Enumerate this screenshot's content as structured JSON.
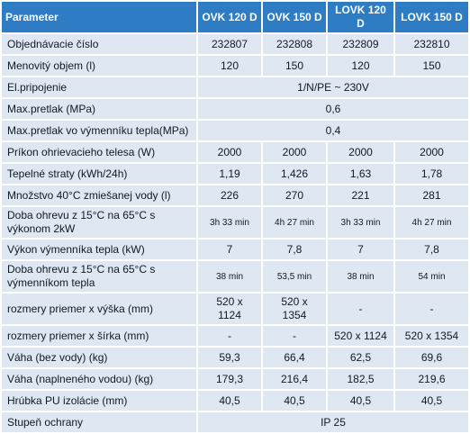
{
  "table": {
    "header": [
      "Parameter",
      "OVK 120 D",
      "OVK 150 D",
      "LOVK 120 D",
      "LOVK 150 D"
    ],
    "rows": [
      [
        "Objednávacie číslo",
        "232807",
        "232808",
        "232809",
        "232810"
      ],
      [
        "Menovitý objem (l)",
        "120",
        "150",
        "120",
        "150"
      ],
      [
        "El.pripojenie",
        "1/N/PE ~ 230V"
      ],
      [
        "Max.pretlak (MPa)",
        "0,6"
      ],
      [
        "Max.pretlak vo výmenníku tepla(MPa)",
        "0,4"
      ],
      [
        "Príkon ohrievacieho telesa (W)",
        "2000",
        "2000",
        "2000",
        "2000"
      ],
      [
        "Tepelné straty (kWh/24h)",
        "1,19",
        "1,426",
        "1,63",
        "1,78"
      ],
      [
        "Množstvo 40°C zmiešanej vody (l)",
        "226",
        "270",
        "221",
        "281"
      ],
      [
        "Doba ohrevu z 15°C na 65°C s výkonom 2kW",
        "3h 33 min",
        "4h 27 min",
        "3h 33 min",
        "4h 27 min"
      ],
      [
        "Výkon výmenníka tepla (kW)",
        "7",
        "7,8",
        "7",
        "7,8"
      ],
      [
        "Doba ohrevu z 15°C na 65°C s výmenníkom tepla",
        "38 min",
        "53,5 min",
        "38 min",
        "54 min"
      ],
      [
        "rozmery priemer x výška (mm)",
        "520 x 1124",
        "520 x 1354",
        "-",
        "-"
      ],
      [
        "rozmery priemer x šírka (mm)",
        "-",
        "-",
        "520 x 1124",
        "520 x 1354"
      ],
      [
        "Váha (bez vody) (kg)",
        "59,3",
        "66,4",
        "62,5",
        "69,6"
      ],
      [
        "Váha (naplneného vodou) (kg)",
        "179,3",
        "216,4",
        "182,5",
        "219,6"
      ],
      [
        "Hrúbka PU izolácie (mm)",
        "40,5",
        "40,5",
        "40,5",
        "40,5"
      ],
      [
        "Stupeň ochrany",
        "IP 25"
      ]
    ]
  }
}
